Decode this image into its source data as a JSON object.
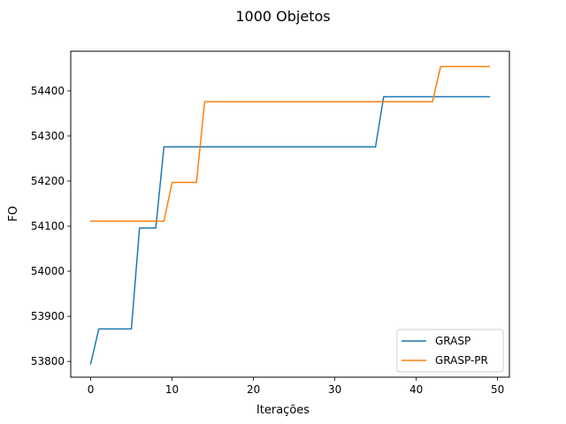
{
  "chart_data": {
    "type": "line",
    "title": "1000 Objetos",
    "xlabel": "Iterações",
    "ylabel": "FO",
    "xlim": [
      -2.45,
      51.45
    ],
    "ylim": [
      53765,
      54488
    ],
    "xticks": [
      0,
      10,
      20,
      30,
      40,
      50
    ],
    "yticks": [
      53800,
      53900,
      54000,
      54100,
      54200,
      54300,
      54400
    ],
    "grid": false,
    "legend_position": "lower right",
    "series": [
      {
        "name": "GRASP",
        "color": "#1f77b4",
        "points": [
          [
            0,
            53795
          ],
          [
            1,
            53872
          ],
          [
            5,
            53872
          ],
          [
            6,
            54096
          ],
          [
            8,
            54096
          ],
          [
            9,
            54276
          ],
          [
            35,
            54276
          ],
          [
            36,
            54387
          ],
          [
            49,
            54387
          ]
        ]
      },
      {
        "name": "GRASP-PR",
        "color": "#ff7f0e",
        "points": [
          [
            0,
            54111
          ],
          [
            9,
            54111
          ],
          [
            10,
            54197
          ],
          [
            13,
            54197
          ],
          [
            14,
            54376
          ],
          [
            42,
            54376
          ],
          [
            43,
            54454
          ],
          [
            49,
            54454
          ]
        ]
      }
    ]
  }
}
